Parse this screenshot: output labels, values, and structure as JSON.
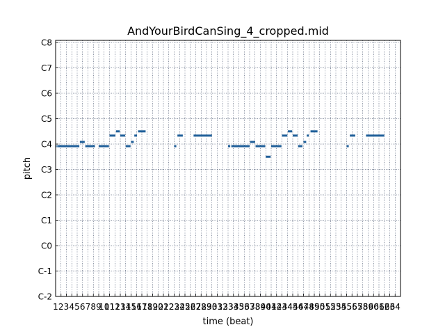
{
  "chart_data": {
    "type": "scatter",
    "title": "AndYourBirdCanSing_4_cropped.mid",
    "xlabel": "time (beat)",
    "ylabel": "pitch",
    "xlim": [
      1,
      64
    ],
    "ylim": [
      0,
      120
    ],
    "grid": true,
    "xticks": [
      "1",
      "2",
      "3",
      "4",
      "5",
      "6",
      "7",
      "8",
      "9",
      "10",
      "11",
      "12",
      "13",
      "14",
      "15",
      "16",
      "17",
      "18",
      "19",
      "20",
      "21",
      "22",
      "23",
      "24",
      "25",
      "26",
      "27",
      "28",
      "29",
      "30",
      "31",
      "32",
      "33",
      "34",
      "35",
      "36",
      "37",
      "38",
      "39",
      "40",
      "41",
      "42",
      "43",
      "44",
      "45",
      "46",
      "47",
      "48",
      "49",
      "50",
      "51",
      "52",
      "53",
      "54",
      "55",
      "56",
      "57",
      "58",
      "59",
      "60",
      "61",
      "62",
      "63",
      "64"
    ],
    "yticks": [
      {
        "label": "C-2",
        "value": 0
      },
      {
        "label": "C-1",
        "value": 12
      },
      {
        "label": "C0",
        "value": 24
      },
      {
        "label": "C1",
        "value": 36
      },
      {
        "label": "C2",
        "value": 48
      },
      {
        "label": "C3",
        "value": 60
      },
      {
        "label": "C4",
        "value": 72
      },
      {
        "label": "C5",
        "value": 84
      },
      {
        "label": "C6",
        "value": 96
      },
      {
        "label": "C7",
        "value": 108
      },
      {
        "label": "C8",
        "value": 120
      }
    ],
    "note_color": "#1f5f99",
    "grid_color": "#1a2a4a",
    "notes": [
      {
        "start": 1.0,
        "end": 1.2,
        "pitch": 71
      },
      {
        "start": 1.3,
        "end": 1.6,
        "pitch": 71
      },
      {
        "start": 1.6,
        "end": 5.4,
        "pitch": 71
      },
      {
        "start": 5.5,
        "end": 6.4,
        "pitch": 73
      },
      {
        "start": 6.5,
        "end": 8.3,
        "pitch": 71
      },
      {
        "start": 9.0,
        "end": 10.9,
        "pitch": 71
      },
      {
        "start": 11.0,
        "end": 12.1,
        "pitch": 76
      },
      {
        "start": 12.2,
        "end": 12.9,
        "pitch": 78
      },
      {
        "start": 13.0,
        "end": 13.9,
        "pitch": 76
      },
      {
        "start": 14.0,
        "end": 14.9,
        "pitch": 71
      },
      {
        "start": 15.0,
        "end": 15.5,
        "pitch": 73
      },
      {
        "start": 15.6,
        "end": 16.1,
        "pitch": 76
      },
      {
        "start": 16.3,
        "end": 17.7,
        "pitch": 78
      },
      {
        "start": 23.0,
        "end": 23.4,
        "pitch": 71
      },
      {
        "start": 23.6,
        "end": 24.6,
        "pitch": 76
      },
      {
        "start": 26.6,
        "end": 30.0,
        "pitch": 76
      },
      {
        "start": 33.0,
        "end": 33.4,
        "pitch": 71
      },
      {
        "start": 33.6,
        "end": 37.0,
        "pitch": 71
      },
      {
        "start": 37.1,
        "end": 38.0,
        "pitch": 73
      },
      {
        "start": 38.1,
        "end": 39.9,
        "pitch": 71
      },
      {
        "start": 40.0,
        "end": 40.9,
        "pitch": 66
      },
      {
        "start": 41.0,
        "end": 42.9,
        "pitch": 71
      },
      {
        "start": 43.0,
        "end": 44.0,
        "pitch": 76
      },
      {
        "start": 44.1,
        "end": 44.9,
        "pitch": 78
      },
      {
        "start": 45.0,
        "end": 45.9,
        "pitch": 76
      },
      {
        "start": 46.0,
        "end": 46.8,
        "pitch": 71
      },
      {
        "start": 47.0,
        "end": 47.5,
        "pitch": 73
      },
      {
        "start": 47.6,
        "end": 48.0,
        "pitch": 76
      },
      {
        "start": 48.3,
        "end": 49.6,
        "pitch": 78
      },
      {
        "start": 55.0,
        "end": 55.4,
        "pitch": 71
      },
      {
        "start": 55.6,
        "end": 56.6,
        "pitch": 76
      },
      {
        "start": 58.6,
        "end": 62.0,
        "pitch": 76
      }
    ]
  }
}
